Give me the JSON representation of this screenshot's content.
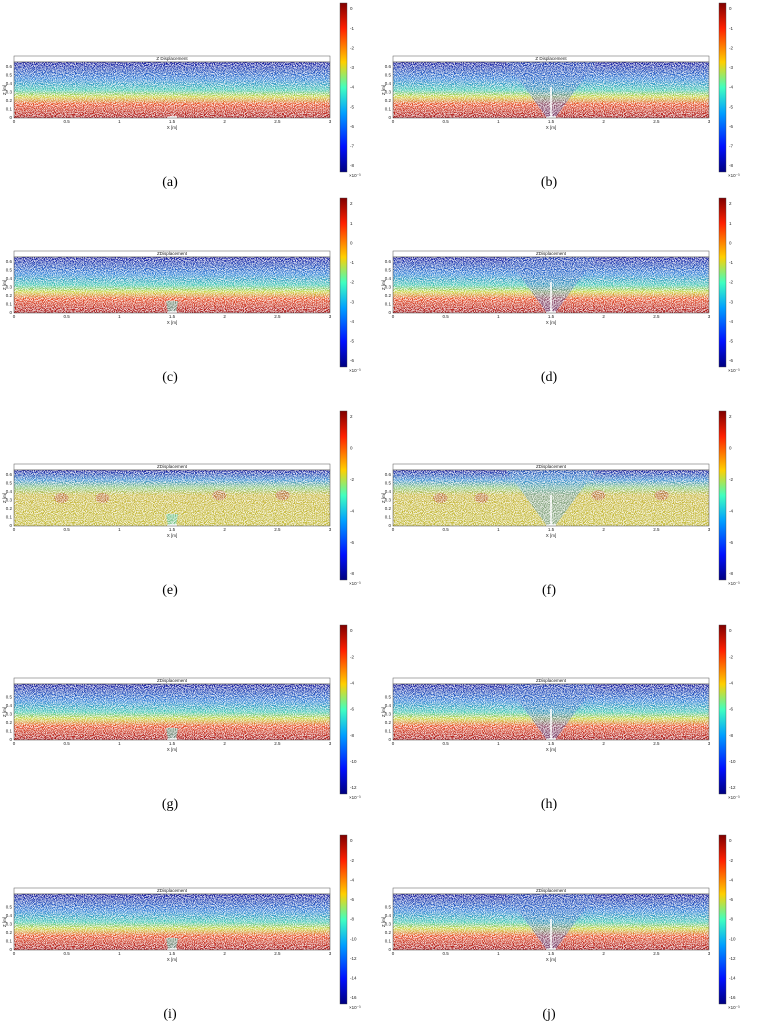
{
  "panels": [
    {
      "label": "(a)",
      "title": "Z Displacement",
      "x_label": "X [m]",
      "y_label": "Z [m]",
      "x_ticks": [
        "0",
        "0.5",
        "1",
        "1.5",
        "2",
        "2.5",
        "3"
      ],
      "y_ticks": [
        "0",
        "0.1",
        "0.2",
        "0.3",
        "0.4",
        "0.5",
        "0.6"
      ],
      "colorbar_ticks": [
        "0",
        "-1",
        "-2",
        "-3",
        "-4",
        "-5",
        "-6",
        "-7",
        "-8"
      ],
      "colorbar_unit": "×10⁻³"
    },
    {
      "label": "(b)",
      "title": "Z Displacement",
      "x_label": "X [m]",
      "y_label": "Z [m]",
      "x_ticks": [
        "0",
        "0.5",
        "1",
        "1.5",
        "2",
        "2.5",
        "3"
      ],
      "y_ticks": [
        "0",
        "0.1",
        "0.2",
        "0.3",
        "0.4",
        "0.5",
        "0.6"
      ],
      "colorbar_ticks": [
        "0",
        "-1",
        "-2",
        "-3",
        "-4",
        "-5",
        "-6",
        "-7",
        "-8"
      ],
      "colorbar_unit": "×10⁻³"
    },
    {
      "label": "(c)",
      "title": "ZDisplacement",
      "x_label": "X [m]",
      "y_label": "Z [m]",
      "x_ticks": [
        "0",
        "0.5",
        "1",
        "1.5",
        "2",
        "2.5",
        "3"
      ],
      "y_ticks": [
        "0",
        "0.1",
        "0.2",
        "0.3",
        "0.4",
        "0.5",
        "0.6"
      ],
      "colorbar_ticks": [
        "2",
        "1",
        "0",
        "-1",
        "-2",
        "-3",
        "-4",
        "-5",
        "-6"
      ],
      "colorbar_unit": "×10⁻³"
    },
    {
      "label": "(d)",
      "title": "ZDisplacement",
      "x_label": "X [m]",
      "y_label": "Z [m]",
      "x_ticks": [
        "0",
        "0.5",
        "1",
        "1.5",
        "2",
        "2.5",
        "3"
      ],
      "y_ticks": [
        "0",
        "0.1",
        "0.2",
        "0.3",
        "0.4",
        "0.5",
        "0.6"
      ],
      "colorbar_ticks": [
        "2",
        "1",
        "0",
        "-1",
        "-2",
        "-3",
        "-4",
        "-5",
        "-6"
      ],
      "colorbar_unit": "×10⁻³"
    },
    {
      "label": "(e)",
      "title": "ZDisplacement",
      "x_label": "X [m]",
      "y_label": "Z [m]",
      "x_ticks": [
        "0",
        "0.5",
        "1",
        "1.5",
        "2",
        "2.5",
        "3"
      ],
      "y_ticks": [
        "0",
        "0.1",
        "0.2",
        "0.3",
        "0.4",
        "0.5",
        "0.6"
      ],
      "colorbar_ticks": [
        "2",
        "0",
        "-2",
        "-4",
        "-6",
        "-8"
      ],
      "colorbar_unit": "×10⁻³"
    },
    {
      "label": "(f)",
      "title": "ZDisplacement",
      "x_label": "X [m]",
      "y_label": "Z [m]",
      "x_ticks": [
        "0",
        "0.5",
        "1",
        "1.5",
        "2",
        "2.5",
        "3"
      ],
      "y_ticks": [
        "0",
        "0.1",
        "0.2",
        "0.3",
        "0.4",
        "0.5",
        "0.6"
      ],
      "colorbar_ticks": [
        "2",
        "0",
        "-2",
        "-4",
        "-6",
        "-8"
      ],
      "colorbar_unit": "×10⁻³"
    },
    {
      "label": "(g)",
      "title": "ZDisplacement",
      "x_label": "X [m]",
      "y_label": "Z [m]",
      "x_ticks": [
        "0",
        "0.5",
        "1",
        "1.5",
        "2",
        "2.5",
        "3"
      ],
      "y_ticks": [
        "0",
        "0.1",
        "0.2",
        "0.3",
        "0.4",
        "0.5"
      ],
      "colorbar_ticks": [
        "0",
        "-2",
        "-4",
        "-6",
        "-8",
        "-10",
        "-12"
      ],
      "colorbar_unit": "×10⁻³"
    },
    {
      "label": "(h)",
      "title": "ZDisplacement",
      "x_label": "X [m]",
      "y_label": "Z [m]",
      "x_ticks": [
        "0",
        "0.5",
        "1",
        "1.5",
        "2",
        "2.5",
        "3"
      ],
      "y_ticks": [
        "0",
        "0.1",
        "0.2",
        "0.3",
        "0.4",
        "0.5"
      ],
      "colorbar_ticks": [
        "0",
        "-2",
        "-4",
        "-6",
        "-8",
        "-10",
        "-12"
      ],
      "colorbar_unit": "×10⁻³"
    },
    {
      "label": "(i)",
      "title": "ZDisplacement",
      "x_label": "X [m]",
      "y_label": "Z [m]",
      "x_ticks": [
        "0",
        "0.5",
        "1",
        "1.5",
        "2",
        "2.5",
        "3"
      ],
      "y_ticks": [
        "0",
        "0.1",
        "0.2",
        "0.3",
        "0.4",
        "0.5"
      ],
      "colorbar_ticks": [
        "0",
        "-2",
        "-4",
        "-6",
        "-8",
        "-10",
        "-12",
        "-14",
        "-16"
      ],
      "colorbar_unit": "×10⁻³"
    },
    {
      "label": "(j)",
      "title": "ZDisplacement",
      "x_label": "X [m]",
      "y_label": "Z [m]",
      "x_ticks": [
        "0",
        "0.5",
        "1",
        "1.5",
        "2",
        "2.5",
        "3"
      ],
      "y_ticks": [
        "0",
        "0.1",
        "0.2",
        "0.3",
        "0.4",
        "0.5"
      ],
      "colorbar_ticks": [
        "0",
        "-2",
        "-4",
        "-6",
        "-8",
        "-10",
        "-12",
        "-14",
        "-16"
      ],
      "colorbar_unit": "×10⁻³"
    }
  ]
}
